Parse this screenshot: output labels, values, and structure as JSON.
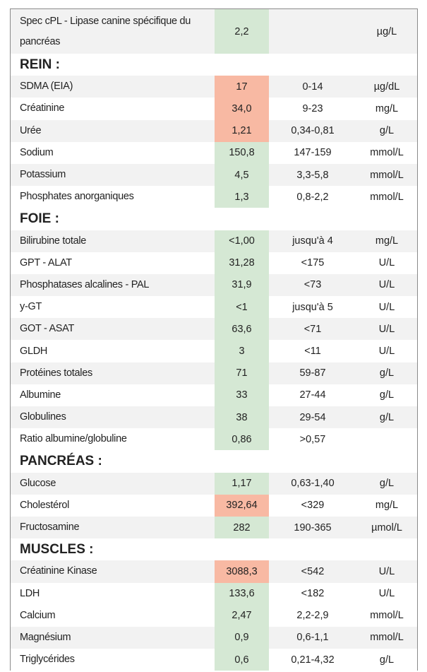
{
  "colors": {
    "normal": "#d5e8d4",
    "high": "#f8b9a3",
    "stripe": "#f2f2f2"
  },
  "sections": [
    {
      "title": "",
      "rows": [
        {
          "name": "Spec cPL - Lipase canine spécifique du pancréas",
          "value": "2,2",
          "range": "",
          "unit": "µg/L",
          "status": "normal",
          "stripe": true
        }
      ]
    },
    {
      "title": "REIN :",
      "rows": [
        {
          "name": "SDMA (EIA)",
          "value": "17",
          "range": "0-14",
          "unit": "µg/dL",
          "status": "high",
          "stripe": true
        },
        {
          "name": "Créatinine",
          "value": "34,0",
          "range": "9-23",
          "unit": "mg/L",
          "status": "high",
          "stripe": false
        },
        {
          "name": "Urée",
          "value": "1,21",
          "range": "0,34-0,81",
          "unit": "g/L",
          "status": "high",
          "stripe": true
        },
        {
          "name": "Sodium",
          "value": "150,8",
          "range": "147-159",
          "unit": "mmol/L",
          "status": "normal",
          "stripe": false
        },
        {
          "name": "Potassium",
          "value": "4,5",
          "range": "3,3-5,8",
          "unit": "mmol/L",
          "status": "normal",
          "stripe": true
        },
        {
          "name": "Phosphates anorganiques",
          "value": "1,3",
          "range": "0,8-2,2",
          "unit": "mmol/L",
          "status": "normal",
          "stripe": false
        }
      ]
    },
    {
      "title": "FOIE :",
      "rows": [
        {
          "name": "Bilirubine totale",
          "value": "<1,00",
          "range": "jusqu'à 4",
          "unit": "mg/L",
          "status": "normal",
          "stripe": true
        },
        {
          "name": "GPT - ALAT",
          "value": "31,28",
          "range": "<175",
          "unit": "U/L",
          "status": "normal",
          "stripe": false
        },
        {
          "name": "Phosphatases alcalines - PAL",
          "value": "31,9",
          "range": "<73",
          "unit": "U/L",
          "status": "normal",
          "stripe": true
        },
        {
          "name": "y-GT",
          "value": "<1",
          "range": "jusqu'à 5",
          "unit": "U/L",
          "status": "normal",
          "stripe": false
        },
        {
          "name": "GOT - ASAT",
          "value": "63,6",
          "range": "<71",
          "unit": "U/L",
          "status": "normal",
          "stripe": true
        },
        {
          "name": "GLDH",
          "value": "3",
          "range": "<11",
          "unit": "U/L",
          "status": "normal",
          "stripe": false
        },
        {
          "name": "Protéines totales",
          "value": "71",
          "range": "59-87",
          "unit": "g/L",
          "status": "normal",
          "stripe": true
        },
        {
          "name": "Albumine",
          "value": "33",
          "range": "27-44",
          "unit": "g/L",
          "status": "normal",
          "stripe": false
        },
        {
          "name": "Globulines",
          "value": "38",
          "range": "29-54",
          "unit": "g/L",
          "status": "normal",
          "stripe": true
        },
        {
          "name": "Ratio albumine/globuline",
          "value": "0,86",
          "range": ">0,57",
          "unit": "",
          "status": "normal",
          "stripe": false
        }
      ]
    },
    {
      "title": "PANCRÉAS :",
      "rows": [
        {
          "name": "Glucose",
          "value": "1,17",
          "range": "0,63-1,40",
          "unit": "g/L",
          "status": "normal",
          "stripe": true
        },
        {
          "name": "Cholestérol",
          "value": "392,64",
          "range": "<329",
          "unit": "mg/L",
          "status": "high",
          "stripe": false
        },
        {
          "name": "Fructosamine",
          "value": "282",
          "range": "190-365",
          "unit": "µmol/L",
          "status": "normal",
          "stripe": true
        }
      ]
    },
    {
      "title": "MUSCLES :",
      "rows": [
        {
          "name": "Créatinine Kinase",
          "value": "3088,3",
          "range": "<542",
          "unit": "U/L",
          "status": "high",
          "stripe": true
        },
        {
          "name": "LDH",
          "value": "133,6",
          "range": "<182",
          "unit": "U/L",
          "status": "normal",
          "stripe": false
        },
        {
          "name": "Calcium",
          "value": "2,47",
          "range": "2,2-2,9",
          "unit": "mmol/L",
          "status": "normal",
          "stripe": false
        },
        {
          "name": "Magnésium",
          "value": "0,9",
          "range": "0,6-1,1",
          "unit": "mmol/L",
          "status": "normal",
          "stripe": true
        },
        {
          "name": "Triglycérides",
          "value": "0,6",
          "range": "0,21-4,32",
          "unit": "g/L",
          "status": "normal",
          "stripe": false
        }
      ]
    }
  ]
}
